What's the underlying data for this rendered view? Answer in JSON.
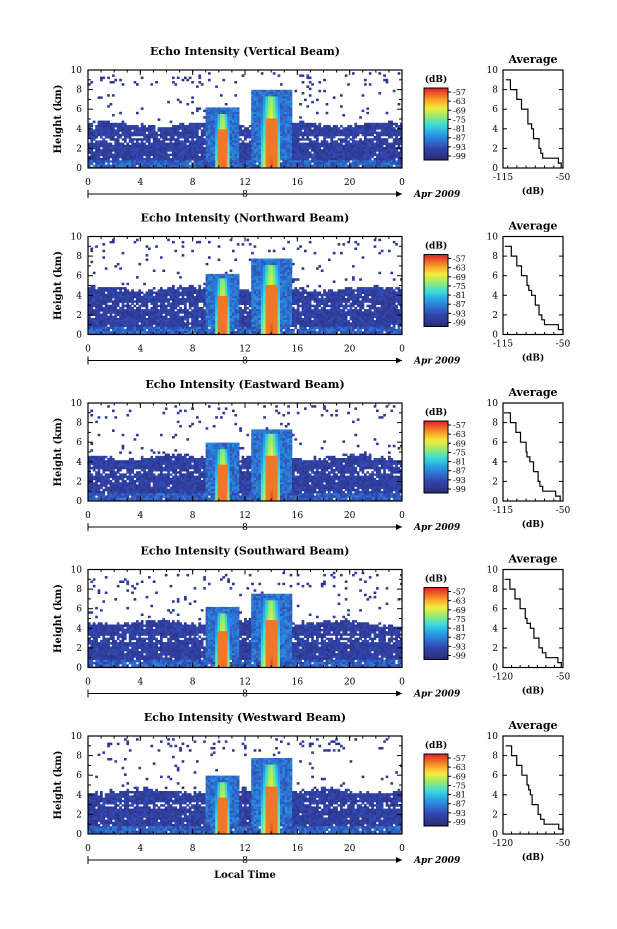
{
  "figure": {
    "xlabel": "Local Time",
    "date_label": "Apr 2009",
    "day_label": "8"
  },
  "chart_data": [
    {
      "type": "heatmap",
      "title": "Echo Intensity (Vertical Beam)",
      "ylabel": "Height (km)",
      "xticks": [
        "0",
        "4",
        "8",
        "12",
        "16",
        "20",
        "0"
      ],
      "yticks": [
        "0",
        "2",
        "4",
        "6",
        "8",
        "10"
      ],
      "xlim": [
        0,
        24
      ],
      "ylim": [
        0,
        10
      ],
      "colorbar": {
        "unit": "(dB)",
        "ticks": [
          "-57",
          "-63",
          "-69",
          "-75",
          "-81",
          "-87",
          "-93",
          "-99"
        ]
      },
      "features": {
        "cloud_top_km": 4.6,
        "rain_events_hours": [
          10.2,
          13.9
        ],
        "rain_tops_km": [
          5.7,
          7.4
        ]
      },
      "average_profile": {
        "title": "Average",
        "xlabel": "(dB)",
        "xticks": [
          "-115",
          "-50"
        ],
        "xlim": [
          -115,
          -50
        ],
        "yticks": [
          "0",
          "2",
          "4",
          "6",
          "8",
          "10"
        ],
        "height_km": [
          0,
          0.5,
          1,
          1.5,
          2,
          3,
          4,
          4.5,
          5,
          6,
          7,
          8,
          9
        ],
        "values_db": [
          -52,
          -55,
          -72,
          -74,
          -76,
          -82,
          -84,
          -88,
          -88,
          -95,
          -100,
          -107,
          -112
        ]
      }
    },
    {
      "type": "heatmap",
      "title": "Echo Intensity (Northward Beam)",
      "ylabel": "Height (km)",
      "xticks": [
        "0",
        "4",
        "8",
        "12",
        "16",
        "20",
        "0"
      ],
      "yticks": [
        "0",
        "2",
        "4",
        "6",
        "8",
        "10"
      ],
      "xlim": [
        0,
        24
      ],
      "ylim": [
        0,
        10
      ],
      "colorbar": {
        "unit": "(dB)",
        "ticks": [
          "-57",
          "-63",
          "-69",
          "-75",
          "-81",
          "-87",
          "-93",
          "-99"
        ]
      },
      "features": {
        "cloud_top_km": 4.8,
        "rain_events_hours": [
          10.2,
          13.9
        ],
        "rain_tops_km": [
          5.8,
          7.3
        ]
      },
      "average_profile": {
        "title": "Average",
        "xlabel": "(dB)",
        "xticks": [
          "-115",
          "-50"
        ],
        "xlim": [
          -115,
          -50
        ],
        "yticks": [
          "0",
          "2",
          "4",
          "6",
          "8",
          "10"
        ],
        "height_km": [
          0,
          0.5,
          1,
          1.5,
          2,
          3,
          4,
          4.5,
          5,
          6,
          7,
          8,
          9
        ],
        "values_db": [
          -50,
          -55,
          -70,
          -73,
          -76,
          -80,
          -84,
          -87,
          -89,
          -95,
          -100,
          -106,
          -113
        ]
      }
    },
    {
      "type": "heatmap",
      "title": "Echo Intensity (Eastward Beam)",
      "ylabel": "Height (km)",
      "xticks": [
        "0",
        "4",
        "8",
        "12",
        "16",
        "20",
        "0"
      ],
      "yticks": [
        "0",
        "2",
        "4",
        "6",
        "8",
        "10"
      ],
      "xlim": [
        0,
        24
      ],
      "ylim": [
        0,
        10
      ],
      "colorbar": {
        "unit": "(dB)",
        "ticks": [
          "-57",
          "-63",
          "-69",
          "-75",
          "-81",
          "-87",
          "-93",
          "-99"
        ]
      },
      "features": {
        "cloud_top_km": 4.6,
        "rain_events_hours": [
          10.2,
          13.9
        ],
        "rain_tops_km": [
          5.4,
          6.9
        ]
      },
      "average_profile": {
        "title": "Average",
        "xlabel": "(dB)",
        "xticks": [
          "-115",
          "-50"
        ],
        "xlim": [
          -115,
          -50
        ],
        "yticks": [
          "0",
          "2",
          "4",
          "6",
          "8",
          "10"
        ],
        "height_km": [
          0,
          0.5,
          1,
          1.5,
          2,
          3,
          4,
          4.5,
          5,
          6,
          7,
          8,
          9
        ],
        "values_db": [
          -53,
          -58,
          -72,
          -75,
          -77,
          -82,
          -86,
          -89,
          -90,
          -96,
          -101,
          -107,
          -114
        ]
      }
    },
    {
      "type": "heatmap",
      "title": "Echo Intensity (Southward Beam)",
      "ylabel": "Height (km)",
      "xticks": [
        "0",
        "4",
        "8",
        "12",
        "16",
        "20",
        "0"
      ],
      "yticks": [
        "0",
        "2",
        "4",
        "6",
        "8",
        "10"
      ],
      "xlim": [
        0,
        24
      ],
      "ylim": [
        0,
        10
      ],
      "colorbar": {
        "unit": "(dB)",
        "ticks": [
          "-57",
          "-63",
          "-69",
          "-75",
          "-81",
          "-87",
          "-93",
          "-99"
        ]
      },
      "features": {
        "cloud_top_km": 4.7,
        "rain_events_hours": [
          10.2,
          13.9
        ],
        "rain_tops_km": [
          5.6,
          7.0
        ]
      },
      "average_profile": {
        "title": "Average",
        "xlabel": "(dB)",
        "xticks": [
          "-120",
          "-50"
        ],
        "xlim": [
          -120,
          -50
        ],
        "yticks": [
          "0",
          "2",
          "4",
          "6",
          "8",
          "10"
        ],
        "height_km": [
          0,
          0.5,
          1,
          1.5,
          2,
          3,
          4,
          4.5,
          5,
          6,
          7,
          8,
          9
        ],
        "values_db": [
          -52,
          -56,
          -70,
          -74,
          -78,
          -84,
          -88,
          -92,
          -94,
          -100,
          -106,
          -112,
          -118
        ]
      }
    },
    {
      "type": "heatmap",
      "title": "Echo Intensity (Westward Beam)",
      "ylabel": "Height (km)",
      "xticks": [
        "0",
        "4",
        "8",
        "12",
        "16",
        "20",
        "0"
      ],
      "yticks": [
        "0",
        "2",
        "4",
        "6",
        "8",
        "10"
      ],
      "xlim": [
        0,
        24
      ],
      "ylim": [
        0,
        10
      ],
      "colorbar": {
        "unit": "(dB)",
        "ticks": [
          "-57",
          "-63",
          "-69",
          "-75",
          "-81",
          "-87",
          "-93",
          "-99"
        ]
      },
      "features": {
        "cloud_top_km": 4.5,
        "rain_events_hours": [
          10.2,
          13.9
        ],
        "rain_tops_km": [
          5.4,
          7.2
        ]
      },
      "average_profile": {
        "title": "Average",
        "xlabel": "(dB)",
        "xticks": [
          "-120",
          "-50"
        ],
        "xlim": [
          -120,
          -50
        ],
        "yticks": [
          "0",
          "2",
          "4",
          "6",
          "8",
          "10"
        ],
        "height_km": [
          0,
          0.5,
          1,
          1.5,
          2,
          3,
          4,
          4.5,
          5,
          6,
          7,
          8,
          9
        ],
        "values_db": [
          -50,
          -55,
          -72,
          -76,
          -79,
          -86,
          -88,
          -90,
          -92,
          -98,
          -104,
          -110,
          -117
        ]
      }
    }
  ]
}
